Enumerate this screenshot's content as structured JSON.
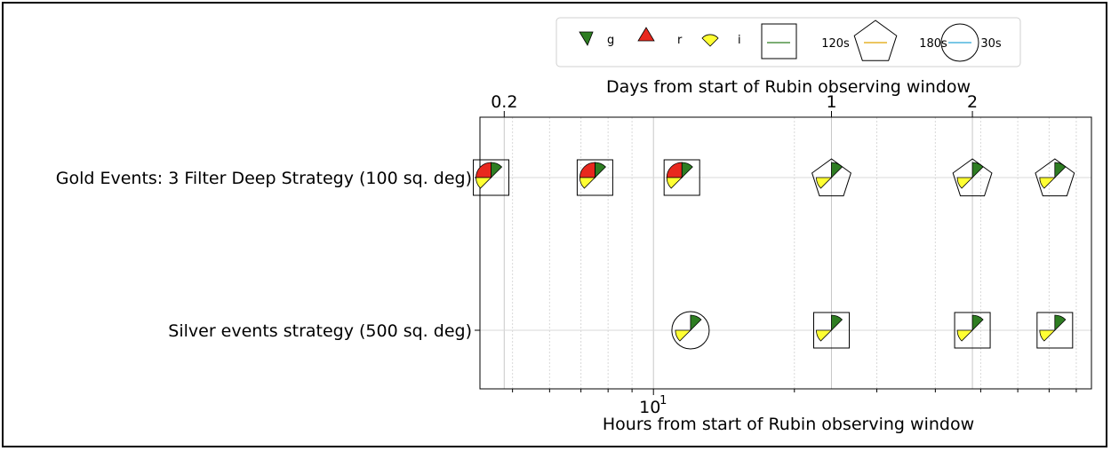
{
  "chart_data": {
    "type": "scatter",
    "xscale": "log",
    "xlabel": "Hours from start of Rubin observing window",
    "x2label": "Days from start of Rubin observing window",
    "xlim": [
      4.26,
      86.2
    ],
    "x_ticks": [
      {
        "value": 10,
        "label": "10",
        "exponent": "1"
      }
    ],
    "x2_ticks": [
      {
        "value": 4.8,
        "label": "0.2"
      },
      {
        "value": 24,
        "label": "1"
      },
      {
        "value": 48,
        "label": "2"
      }
    ],
    "grid": true,
    "legend_placement": "top-center",
    "categories": [
      "Gold Events: 3 Filter Deep Strategy (100 sq. deg)",
      "Silver events strategy (500 sq. deg)"
    ],
    "filters": [
      {
        "name": "g",
        "color": "#2e7d22"
      },
      {
        "name": "r",
        "color": "#e8281e"
      },
      {
        "name": "i",
        "color": "#ffff33"
      }
    ],
    "exposures": [
      {
        "name": "120s",
        "shape": "square",
        "line_color": "#2e7d22"
      },
      {
        "name": "180s",
        "shape": "pentagon",
        "line_color": "#e0a300"
      },
      {
        "name": "30s",
        "shape": "circle",
        "line_color": "#2aa7d8"
      }
    ],
    "series": [
      {
        "name": "Gold Events: 3 Filter Deep Strategy (100 sq. deg)",
        "points": [
          {
            "x": 4.5,
            "exposure": "120s",
            "filters": [
              "g",
              "r",
              "i"
            ]
          },
          {
            "x": 7.5,
            "exposure": "120s",
            "filters": [
              "g",
              "r",
              "i"
            ]
          },
          {
            "x": 11.5,
            "exposure": "120s",
            "filters": [
              "g",
              "r",
              "i"
            ]
          },
          {
            "x": 24,
            "exposure": "180s",
            "filters": [
              "g",
              "i"
            ]
          },
          {
            "x": 48,
            "exposure": "180s",
            "filters": [
              "g",
              "i"
            ]
          },
          {
            "x": 72,
            "exposure": "180s",
            "filters": [
              "g",
              "i"
            ]
          }
        ]
      },
      {
        "name": "Silver events strategy (500 sq. deg)",
        "points": [
          {
            "x": 12,
            "exposure": "30s",
            "filters": [
              "g",
              "i"
            ]
          },
          {
            "x": 24,
            "exposure": "120s",
            "filters": [
              "g",
              "i"
            ]
          },
          {
            "x": 48,
            "exposure": "120s",
            "filters": [
              "g",
              "i"
            ]
          },
          {
            "x": 72,
            "exposure": "120s",
            "filters": [
              "g",
              "i"
            ]
          }
        ]
      }
    ]
  }
}
